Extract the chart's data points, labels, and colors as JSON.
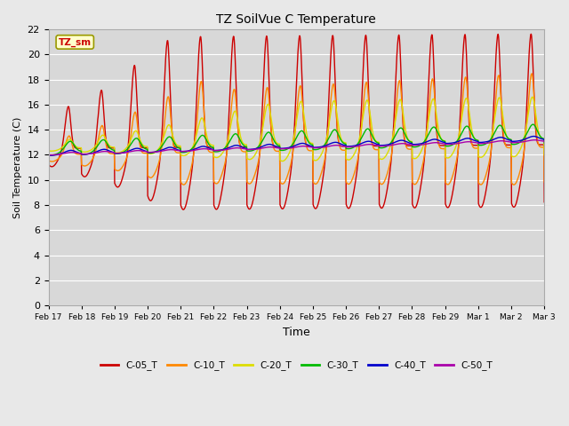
{
  "title": "TZ SoilVue C Temperature",
  "xlabel": "Time",
  "ylabel": "Soil Temperature (C)",
  "ylim": [
    0,
    22
  ],
  "yticks": [
    0,
    2,
    4,
    6,
    8,
    10,
    12,
    14,
    16,
    18,
    20,
    22
  ],
  "background_color": "#e8e8e8",
  "plot_bg_color": "#d8d8d8",
  "annotation_text": "TZ_sm",
  "annotation_bg": "#ffffcc",
  "annotation_border": "#999900",
  "annotation_text_color": "#cc0000",
  "series": [
    {
      "label": "C-05_T",
      "color": "#cc0000",
      "lw": 1.0
    },
    {
      "label": "C-10_T",
      "color": "#ff8800",
      "lw": 1.0
    },
    {
      "label": "C-20_T",
      "color": "#dddd00",
      "lw": 1.0
    },
    {
      "label": "C-30_T",
      "color": "#00bb00",
      "lw": 1.0
    },
    {
      "label": "C-40_T",
      "color": "#0000cc",
      "lw": 1.0
    },
    {
      "label": "C-50_T",
      "color": "#aa00aa",
      "lw": 1.0
    }
  ],
  "x_labels": [
    "Feb 17",
    "Feb 18",
    "Feb 19",
    "Feb 20",
    "Feb 21",
    "Feb 22",
    "Feb 23",
    "Feb 24",
    "Feb 25",
    "Feb 26",
    "Feb 27",
    "Feb 28",
    "Feb 29",
    "Mar 1",
    "Mar 2",
    "Mar 3"
  ],
  "n_days": 15
}
